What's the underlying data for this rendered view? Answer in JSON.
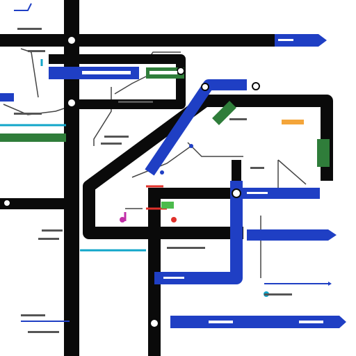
{
  "colors": {
    "background": "#ffffff",
    "track_black": "#0a0a0a",
    "track_blue": "#1f3fc4",
    "track_green": "#2f7d3a",
    "track_cyan": "#12a6c9",
    "accent_red": "#e0302a",
    "accent_magenta": "#c22fa8",
    "accent_orange": "#f4a53a",
    "thin_line_gray": "#444444"
  },
  "icons": [
    "junction-icon",
    "station-marker-icon",
    "arrow-end-icon"
  ]
}
